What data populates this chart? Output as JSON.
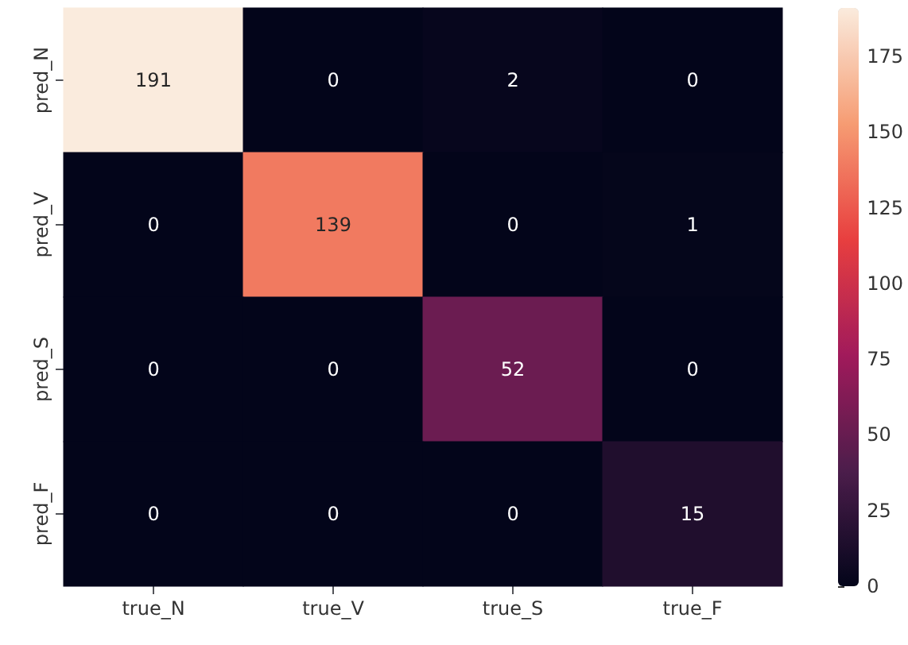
{
  "chart_data": {
    "type": "heatmap",
    "categories": [
      "true_N",
      "true_V",
      "true_S",
      "true_F"
    ],
    "y_categories": [
      "pred_N",
      "pred_V",
      "pred_S",
      "pred_F"
    ],
    "cells": [
      [
        191,
        0,
        2,
        0
      ],
      [
        0,
        139,
        0,
        1
      ],
      [
        0,
        0,
        52,
        0
      ],
      [
        0,
        0,
        0,
        15
      ]
    ],
    "data_labels": true,
    "clim": [
      0,
      191
    ],
    "cticks": [
      0,
      25,
      50,
      75,
      100,
      125,
      150,
      175
    ]
  }
}
